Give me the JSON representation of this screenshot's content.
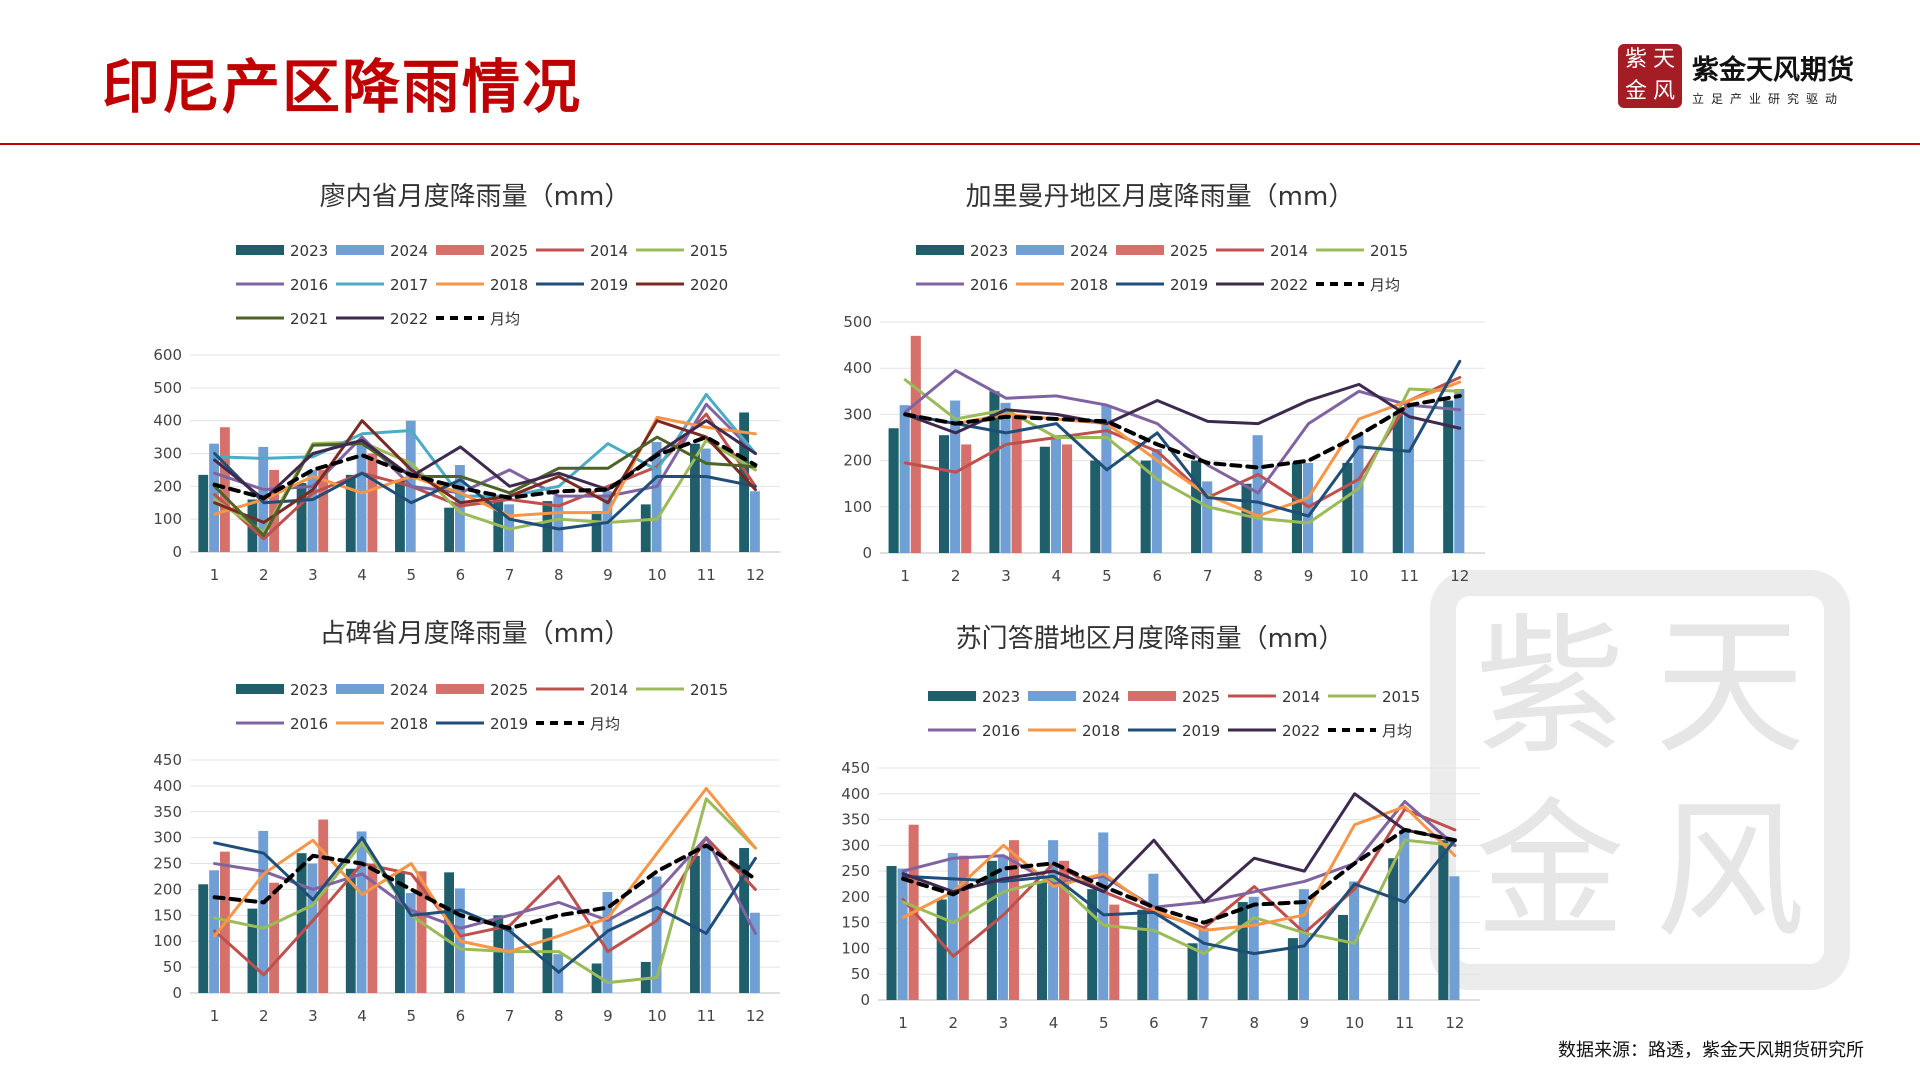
{
  "header": {
    "title": "印尼产区降雨情况",
    "brand": "紫金天风期货",
    "tagline": "立足产业研究驱动",
    "logo_chars": [
      "紫",
      "天",
      "金",
      "风"
    ]
  },
  "watermark_chars": [
    "紫",
    "天",
    "金",
    "风"
  ],
  "source": "数据来源：路透，紫金天风期货研究所",
  "colors": {
    "2023": "#1f5f6b",
    "2024": "#6f9fd4",
    "2025": "#d5706a",
    "2014": "#c0504d",
    "2015": "#9bbb59",
    "2016": "#8064a2",
    "2017": "#4bacc6",
    "2018": "#f79646",
    "2019": "#1f4e79",
    "2020": "#7b2a22",
    "2021": "#4f6228",
    "2022": "#3f2a4f",
    "月均": "#000000"
  },
  "chart_data": [
    {
      "type": "bar+line",
      "title": "廖内省月度降雨量（mm）",
      "categories": [
        "1",
        "2",
        "3",
        "4",
        "5",
        "6",
        "7",
        "8",
        "9",
        "10",
        "11",
        "12"
      ],
      "ylim": [
        0,
        600
      ],
      "yticks": [
        0,
        100,
        200,
        300,
        400,
        500,
        600
      ],
      "legend": [
        "2023",
        "2024",
        "2025",
        "2014",
        "2015",
        "2016",
        "2017",
        "2018",
        "2019",
        "2020",
        "2021",
        "2022",
        "月均"
      ],
      "bars": [
        {
          "name": "2023",
          "values": [
            235,
            160,
            210,
            235,
            220,
            135,
            160,
            155,
            125,
            145,
            330,
            425
          ]
        },
        {
          "name": "2024",
          "values": [
            330,
            320,
            250,
            325,
            400,
            265,
            145,
            170,
            185,
            335,
            315,
            185
          ]
        },
        {
          "name": "2025",
          "values": [
            380,
            250,
            250,
            300,
            null,
            null,
            null,
            null,
            null,
            null,
            null,
            null
          ]
        }
      ],
      "lines": [
        {
          "name": "2014",
          "values": [
            175,
            40,
            180,
            240,
            200,
            140,
            160,
            140,
            200,
            260,
            420,
            200
          ]
        },
        {
          "name": "2015",
          "values": [
            160,
            60,
            330,
            335,
            270,
            120,
            70,
            100,
            90,
            100,
            340,
            250
          ]
        },
        {
          "name": "2016",
          "values": [
            240,
            190,
            200,
            350,
            200,
            180,
            250,
            170,
            170,
            200,
            450,
            300
          ]
        },
        {
          "name": "2017",
          "values": [
            290,
            285,
            290,
            360,
            370,
            170,
            170,
            200,
            330,
            250,
            480,
            300
          ]
        },
        {
          "name": "2018",
          "values": [
            115,
            160,
            230,
            180,
            230,
            180,
            110,
            120,
            120,
            410,
            380,
            360
          ]
        },
        {
          "name": "2019",
          "values": [
            300,
            150,
            160,
            240,
            150,
            220,
            100,
            70,
            90,
            230,
            230,
            200
          ]
        },
        {
          "name": "2020",
          "values": [
            150,
            90,
            190,
            400,
            250,
            150,
            170,
            230,
            150,
            400,
            350,
            190
          ]
        },
        {
          "name": "2021",
          "values": [
            200,
            50,
            325,
            330,
            230,
            230,
            180,
            255,
            255,
            350,
            270,
            260
          ]
        },
        {
          "name": "2022",
          "values": [
            280,
            160,
            300,
            340,
            230,
            320,
            200,
            240,
            190,
            300,
            400,
            300
          ]
        },
        {
          "name": "月均",
          "values": [
            205,
            165,
            250,
            295,
            235,
            195,
            165,
            185,
            190,
            295,
            350,
            265
          ],
          "dashed": true
        }
      ]
    },
    {
      "type": "bar+line",
      "title": "加里曼丹地区月度降雨量（mm）",
      "categories": [
        "1",
        "2",
        "3",
        "4",
        "5",
        "6",
        "7",
        "8",
        "9",
        "10",
        "11",
        "12"
      ],
      "ylim": [
        0,
        500
      ],
      "yticks": [
        0,
        100,
        200,
        300,
        400,
        500
      ],
      "legend": [
        "2023",
        "2024",
        "2025",
        "2014",
        "2015",
        "2016",
        "2018",
        "2019",
        "2022",
        "月均"
      ],
      "bars": [
        {
          "name": "2023",
          "values": [
            270,
            255,
            350,
            230,
            200,
            200,
            200,
            150,
            195,
            195,
            300,
            330
          ]
        },
        {
          "name": "2024",
          "values": [
            320,
            330,
            325,
            255,
            320,
            225,
            155,
            255,
            195,
            255,
            325,
            355
          ]
        },
        {
          "name": "2025",
          "values": [
            470,
            235,
            300,
            235,
            null,
            null,
            null,
            null,
            null,
            null,
            null,
            null
          ]
        }
      ],
      "lines": [
        {
          "name": "2014",
          "values": [
            195,
            175,
            235,
            250,
            265,
            220,
            120,
            170,
            100,
            160,
            330,
            380
          ]
        },
        {
          "name": "2015",
          "values": [
            375,
            290,
            310,
            250,
            250,
            160,
            100,
            75,
            65,
            140,
            355,
            350
          ]
        },
        {
          "name": "2016",
          "values": [
            305,
            395,
            335,
            340,
            320,
            280,
            190,
            130,
            280,
            350,
            320,
            310
          ]
        },
        {
          "name": "2018",
          "values": [
            300,
            280,
            300,
            290,
            280,
            200,
            125,
            80,
            120,
            290,
            330,
            370
          ]
        },
        {
          "name": "2019",
          "values": [
            300,
            280,
            260,
            280,
            180,
            260,
            120,
            110,
            80,
            230,
            220,
            415
          ]
        },
        {
          "name": "2022",
          "values": [
            300,
            260,
            310,
            300,
            280,
            330,
            285,
            280,
            330,
            365,
            295,
            270
          ]
        },
        {
          "name": "月均",
          "values": [
            300,
            280,
            295,
            290,
            285,
            235,
            195,
            185,
            200,
            255,
            320,
            340
          ],
          "dashed": true
        }
      ]
    },
    {
      "type": "bar+line",
      "title": "占碑省月度降雨量（mm）",
      "categories": [
        "1",
        "2",
        "3",
        "4",
        "5",
        "6",
        "7",
        "8",
        "9",
        "10",
        "11",
        "12"
      ],
      "ylim": [
        0,
        450
      ],
      "yticks": [
        0,
        50,
        100,
        150,
        200,
        250,
        300,
        350,
        400,
        450
      ],
      "legend": [
        "2023",
        "2024",
        "2025",
        "2014",
        "2015",
        "2016",
        "2018",
        "2019",
        "月均"
      ],
      "bars": [
        {
          "name": "2023",
          "values": [
            210,
            163,
            270,
            240,
            235,
            233,
            150,
            125,
            57,
            60,
            265,
            280
          ]
        },
        {
          "name": "2024",
          "values": [
            237,
            313,
            250,
            312,
            193,
            202,
            125,
            75,
            195,
            225,
            285,
            155
          ]
        },
        {
          "name": "2025",
          "values": [
            273,
            213,
            335,
            250,
            235,
            null,
            null,
            null,
            null,
            null,
            null,
            null
          ]
        }
      ],
      "lines": [
        {
          "name": "2014",
          "values": [
            120,
            35,
            140,
            250,
            230,
            110,
            130,
            225,
            80,
            140,
            300,
            200
          ]
        },
        {
          "name": "2015",
          "values": [
            145,
            125,
            170,
            290,
            150,
            85,
            80,
            80,
            20,
            30,
            375,
            280
          ]
        },
        {
          "name": "2016",
          "values": [
            250,
            235,
            200,
            230,
            160,
            125,
            150,
            175,
            140,
            195,
            300,
            115
          ]
        },
        {
          "name": "2018",
          "values": [
            110,
            230,
            295,
            190,
            250,
            100,
            80,
            110,
            145,
            270,
            395,
            280
          ]
        },
        {
          "name": "2019",
          "values": [
            290,
            270,
            180,
            300,
            150,
            160,
            120,
            40,
            120,
            165,
            115,
            260
          ]
        },
        {
          "name": "月均",
          "values": [
            185,
            175,
            265,
            250,
            200,
            150,
            125,
            150,
            165,
            235,
            285,
            220
          ],
          "dashed": true
        }
      ]
    },
    {
      "type": "bar+line",
      "title": "苏门答腊地区月度降雨量（mm）",
      "categories": [
        "1",
        "2",
        "3",
        "4",
        "5",
        "6",
        "7",
        "8",
        "9",
        "10",
        "11",
        "12"
      ],
      "ylim": [
        0,
        450
      ],
      "yticks": [
        0,
        50,
        100,
        150,
        200,
        250,
        300,
        350,
        400,
        450
      ],
      "legend": [
        "2023",
        "2024",
        "2025",
        "2014",
        "2015",
        "2016",
        "2018",
        "2019",
        "2022",
        "月均"
      ],
      "bars": [
        {
          "name": "2023",
          "values": [
            260,
            195,
            270,
            230,
            215,
            175,
            110,
            190,
            120,
            165,
            275,
            310
          ]
        },
        {
          "name": "2024",
          "values": [
            255,
            285,
            280,
            310,
            325,
            245,
            140,
            200,
            215,
            230,
            330,
            240
          ]
        },
        {
          "name": "2025",
          "values": [
            340,
            280,
            310,
            270,
            185,
            null,
            null,
            null,
            null,
            null,
            null,
            null
          ]
        }
      ],
      "lines": [
        {
          "name": "2014",
          "values": [
            195,
            85,
            165,
            265,
            210,
            170,
            140,
            220,
            130,
            215,
            370,
            330
          ]
        },
        {
          "name": "2015",
          "values": [
            190,
            150,
            210,
            235,
            145,
            135,
            90,
            160,
            130,
            110,
            310,
            300
          ]
        },
        {
          "name": "2016",
          "values": [
            250,
            275,
            280,
            225,
            240,
            180,
            190,
            210,
            230,
            265,
            385,
            300
          ]
        },
        {
          "name": "2018",
          "values": [
            160,
            210,
            300,
            220,
            245,
            175,
            135,
            145,
            165,
            340,
            375,
            280
          ]
        },
        {
          "name": "2019",
          "values": [
            240,
            235,
            230,
            240,
            165,
            170,
            110,
            90,
            105,
            225,
            190,
            310
          ]
        },
        {
          "name": "2022",
          "values": [
            245,
            210,
            235,
            250,
            210,
            310,
            190,
            275,
            250,
            400,
            330,
            310
          ]
        },
        {
          "name": "月均",
          "values": [
            235,
            205,
            255,
            265,
            220,
            180,
            150,
            185,
            190,
            265,
            330,
            310
          ],
          "dashed": true
        }
      ]
    }
  ]
}
